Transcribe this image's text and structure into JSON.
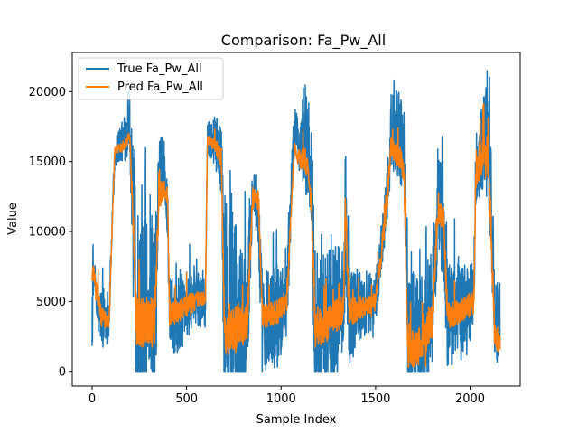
{
  "chart_data": {
    "type": "line",
    "title": "Comparison: Fa_Pw_All",
    "xlabel": "Sample Index",
    "ylabel": "Value",
    "xlim": [
      -105,
      2265
    ],
    "ylim": [
      -1050,
      22800
    ],
    "xticks": [
      0,
      500,
      1000,
      1500,
      2000
    ],
    "yticks": [
      0,
      5000,
      10000,
      15000,
      20000
    ],
    "legend_position": "upper-left",
    "grid": false,
    "n_points": 2160,
    "series": [
      {
        "name": "True Fa_Pw_All",
        "color": "#1f77b4",
        "noise": 0.95,
        "segments": [
          [
            0,
            4100,
            4
          ],
          [
            12,
            7200,
            0.5
          ],
          [
            25,
            4200,
            1.5
          ],
          [
            60,
            3900,
            2.5
          ],
          [
            90,
            4000,
            2
          ],
          [
            110,
            12000,
            0.8
          ],
          [
            120,
            15500,
            1.2
          ],
          [
            140,
            16200,
            1.4
          ],
          [
            170,
            16500,
            1.6
          ],
          [
            200,
            18000,
            2.5
          ],
          [
            235,
            3000,
            9
          ],
          [
            330,
            2800,
            9
          ],
          [
            355,
            15000,
            2
          ],
          [
            380,
            14000,
            2.5
          ],
          [
            400,
            11500,
            2
          ],
          [
            410,
            4000,
            3
          ],
          [
            470,
            4300,
            3
          ],
          [
            540,
            5200,
            2
          ],
          [
            600,
            5000,
            2
          ],
          [
            610,
            16500,
            1.4
          ],
          [
            650,
            16500,
            1.8
          ],
          [
            685,
            15000,
            3
          ],
          [
            700,
            2000,
            8
          ],
          [
            760,
            2500,
            9
          ],
          [
            820,
            3500,
            5
          ],
          [
            850,
            13500,
            2
          ],
          [
            880,
            11000,
            3
          ],
          [
            900,
            3500,
            4
          ],
          [
            980,
            4000,
            4
          ],
          [
            1030,
            5000,
            3
          ],
          [
            1070,
            17500,
            2
          ],
          [
            1100,
            16000,
            2
          ],
          [
            1120,
            17000,
            4
          ],
          [
            1140,
            16000,
            4
          ],
          [
            1160,
            14000,
            4
          ],
          [
            1180,
            3000,
            6
          ],
          [
            1240,
            3500,
            6
          ],
          [
            1300,
            4500,
            5
          ],
          [
            1330,
            5000,
            3
          ],
          [
            1340,
            10000,
            5
          ],
          [
            1360,
            4000,
            4
          ],
          [
            1400,
            4500,
            3
          ],
          [
            1500,
            5000,
            2
          ],
          [
            1560,
            12500,
            2
          ],
          [
            1580,
            16500,
            3
          ],
          [
            1620,
            17000,
            4
          ],
          [
            1650,
            16000,
            3
          ],
          [
            1670,
            2000,
            6
          ],
          [
            1730,
            1500,
            6
          ],
          [
            1800,
            4000,
            5
          ],
          [
            1830,
            12500,
            4
          ],
          [
            1860,
            10000,
            4
          ],
          [
            1880,
            4000,
            4
          ],
          [
            1950,
            4500,
            4
          ],
          [
            2020,
            5000,
            3
          ],
          [
            2030,
            14000,
            3
          ],
          [
            2070,
            16000,
            4
          ],
          [
            2100,
            15500,
            5
          ],
          [
            2130,
            4000,
            4
          ],
          [
            2159,
            3500,
            3
          ]
        ]
      },
      {
        "name": "Pred Fa_Pw_All",
        "color": "#ff7f0e",
        "noise": 0.45,
        "segments": [
          [
            0,
            6800,
            2
          ],
          [
            10,
            7000,
            1
          ],
          [
            20,
            5800,
            2
          ],
          [
            50,
            3900,
            1.5
          ],
          [
            90,
            3500,
            1.2
          ],
          [
            110,
            12000,
            0.6
          ],
          [
            120,
            15800,
            0.6
          ],
          [
            150,
            16000,
            0.7
          ],
          [
            180,
            16400,
            0.9
          ],
          [
            200,
            16800,
            1
          ],
          [
            235,
            3500,
            4
          ],
          [
            330,
            3500,
            4
          ],
          [
            355,
            12500,
            2
          ],
          [
            380,
            13000,
            1.5
          ],
          [
            400,
            12500,
            1.2
          ],
          [
            410,
            4000,
            2
          ],
          [
            470,
            4500,
            2
          ],
          [
            540,
            5000,
            1.5
          ],
          [
            600,
            5200,
            1
          ],
          [
            610,
            16500,
            0.7
          ],
          [
            650,
            16200,
            1
          ],
          [
            685,
            15000,
            2
          ],
          [
            700,
            2500,
            3
          ],
          [
            760,
            3000,
            4
          ],
          [
            820,
            3500,
            3
          ],
          [
            850,
            12500,
            1.5
          ],
          [
            880,
            12000,
            2
          ],
          [
            900,
            4000,
            2
          ],
          [
            980,
            4200,
            2
          ],
          [
            1030,
            5000,
            1.5
          ],
          [
            1070,
            16000,
            1
          ],
          [
            1100,
            15000,
            1.5
          ],
          [
            1120,
            15500,
            2
          ],
          [
            1140,
            14500,
            2
          ],
          [
            1160,
            12000,
            2
          ],
          [
            1180,
            3000,
            3
          ],
          [
            1240,
            3200,
            3
          ],
          [
            1300,
            4000,
            3
          ],
          [
            1330,
            4500,
            2
          ],
          [
            1340,
            11500,
            2
          ],
          [
            1360,
            4000,
            2
          ],
          [
            1400,
            4500,
            2
          ],
          [
            1500,
            5000,
            1.5
          ],
          [
            1560,
            12000,
            2
          ],
          [
            1580,
            16000,
            1.5
          ],
          [
            1620,
            15500,
            2
          ],
          [
            1650,
            14500,
            2
          ],
          [
            1670,
            1500,
            3
          ],
          [
            1730,
            1800,
            3
          ],
          [
            1800,
            3500,
            3
          ],
          [
            1830,
            11500,
            2
          ],
          [
            1860,
            11000,
            2
          ],
          [
            1880,
            4000,
            2
          ],
          [
            1950,
            4200,
            2
          ],
          [
            2020,
            5000,
            2
          ],
          [
            2030,
            14000,
            2
          ],
          [
            2070,
            15500,
            3
          ],
          [
            2100,
            14500,
            3
          ],
          [
            2130,
            2500,
            2
          ],
          [
            2159,
            2000,
            1.5
          ]
        ]
      }
    ]
  }
}
